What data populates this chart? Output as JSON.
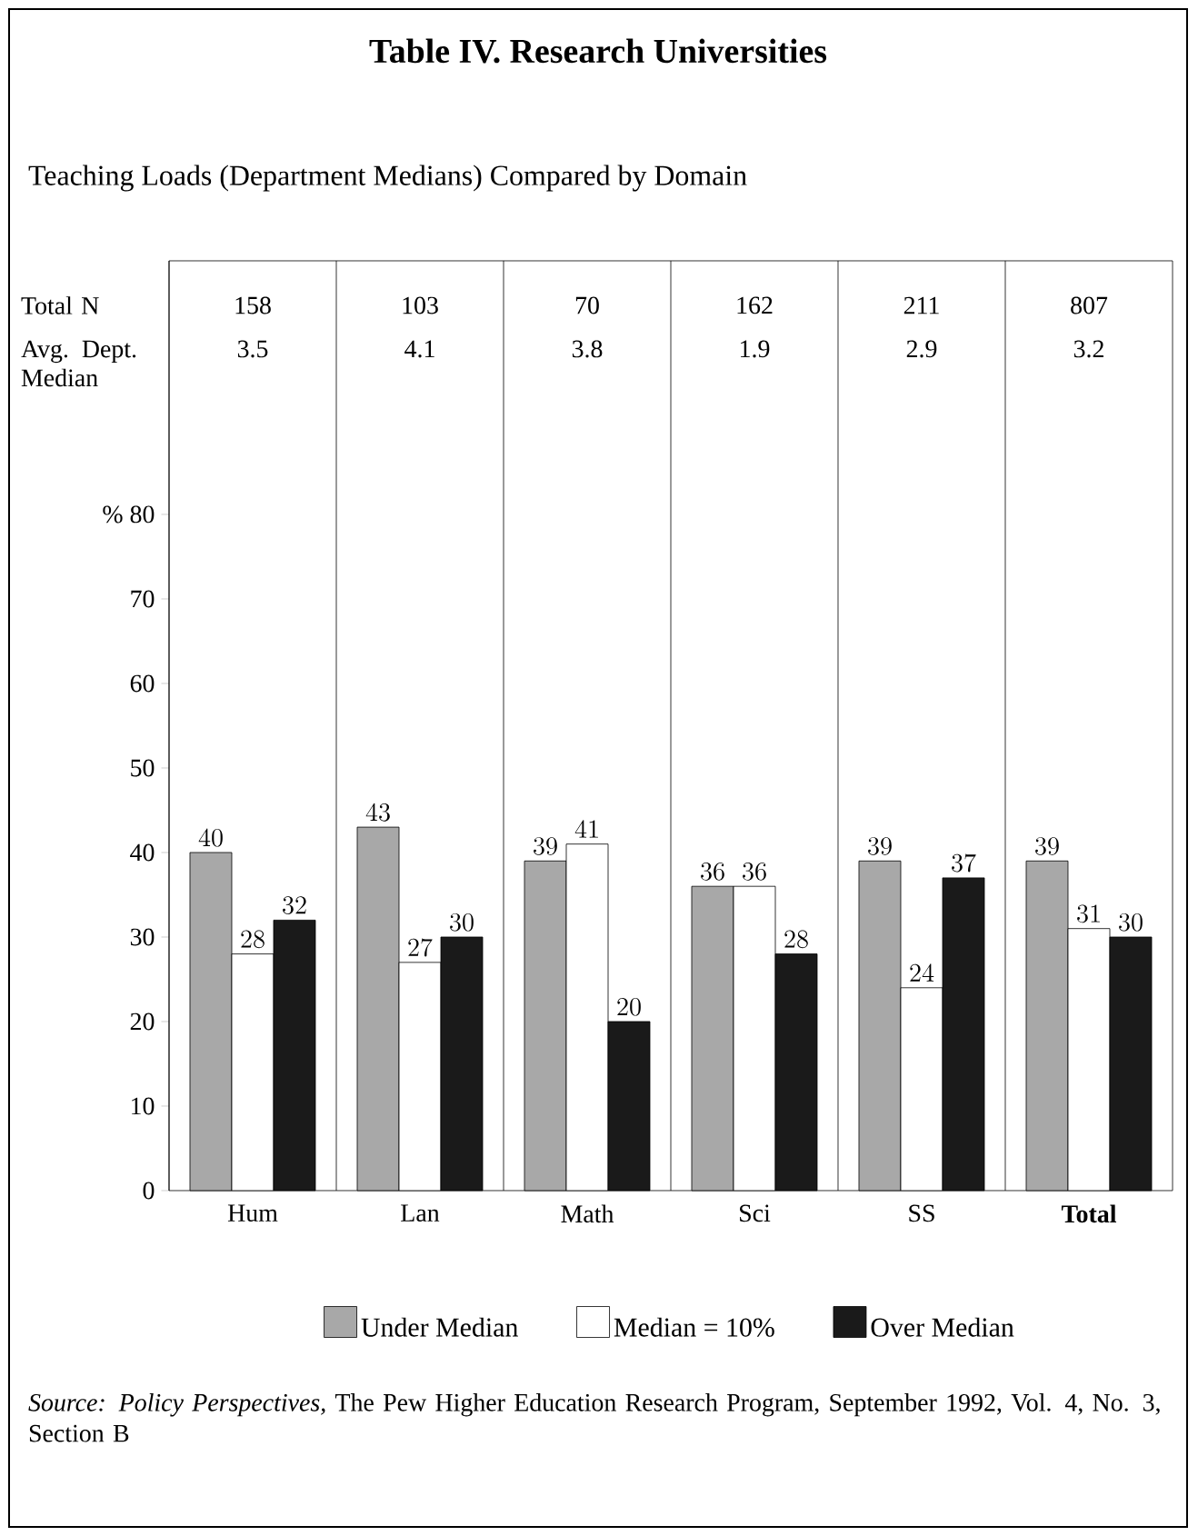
{
  "chart_data": {
    "type": "bar",
    "title": "Table IV. Research Universities",
    "subtitle": "Teaching Loads (Department Medians) Compared by Domain",
    "categories": [
      "Hum",
      "Lan",
      "Math",
      "Sci",
      "SS",
      "**Total**"
    ],
    "series": [
      {
        "name": "Under Median",
        "color": "#a8a8a8",
        "values": [
          40,
          43,
          39,
          36,
          39,
          39
        ]
      },
      {
        "name": "Median = 10%",
        "color": "#ffffff",
        "values": [
          28,
          27,
          41,
          36,
          24,
          31
        ]
      },
      {
        "name": "Over Median",
        "color": "#1a1a1a",
        "values": [
          32,
          30,
          20,
          28,
          37,
          30
        ]
      }
    ],
    "ylim": [
      0,
      110
    ],
    "yticks": [
      0,
      10,
      20,
      30,
      40,
      50,
      60,
      70,
      {
        "value": 80,
        "label": "% 80"
      }
    ],
    "data_labels": true,
    "legend": "bottom",
    "annotations": [
      "Total N",
      "158",
      "103",
      "70",
      "162",
      "211",
      "807",
      "Avg. Dept. Median",
      "3.5",
      "4.1",
      "3.8",
      "1.9",
      "2.9",
      "3.2",
      "*Source: Policy Perspectives,* The Pew Higher Education Research Program, September 1992, Vol. 4, No. 3, Section B"
    ]
  }
}
